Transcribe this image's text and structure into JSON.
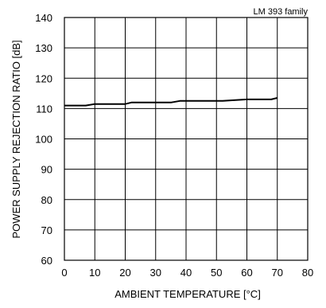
{
  "chart_data": {
    "type": "line",
    "annotation": "LM 393 family",
    "xlabel": "AMBIENT TEMPERATURE [°C]",
    "ylabel": "POWER SUPPLY REJECTION RATIO [dB]",
    "xlim": [
      0,
      80
    ],
    "ylim": [
      60,
      140
    ],
    "xticks": [
      0,
      10,
      20,
      30,
      40,
      50,
      60,
      70,
      80
    ],
    "yticks": [
      60,
      70,
      80,
      90,
      100,
      110,
      120,
      130,
      140
    ],
    "grid": true,
    "series": [
      {
        "x": [
          0,
          7,
          10,
          20,
          22,
          35,
          38,
          52,
          60,
          68,
          70
        ],
        "y": [
          111.0,
          111.0,
          111.5,
          111.5,
          112.0,
          112.0,
          112.5,
          112.5,
          113.0,
          113.0,
          113.5
        ]
      }
    ]
  },
  "colors": {
    "line": "#000000",
    "grid": "#000000",
    "background": "#ffffff"
  }
}
